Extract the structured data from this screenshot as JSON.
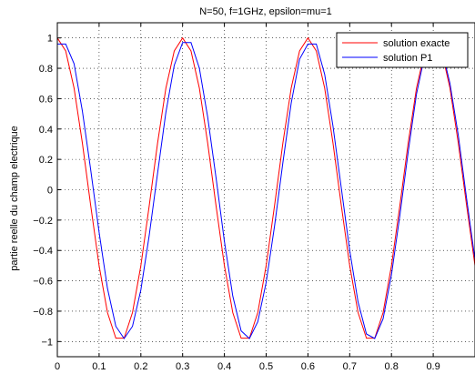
{
  "chart_data": {
    "type": "line",
    "title": "N=50, f=1GHz, epsilon=mu=1",
    "xlabel": "",
    "ylabel": "partie reelle du champ electrique",
    "xlim": [
      0,
      1
    ],
    "ylim": [
      -1.1,
      1.1
    ],
    "grid": true,
    "legend_position": "top-right",
    "x_ticks": [
      0,
      0.1,
      0.2,
      0.3,
      0.4,
      0.5,
      0.6,
      0.7,
      0.8,
      0.9
    ],
    "x_tick_labels": [
      "0",
      "0.1",
      "0.2",
      "0.3",
      "0.4",
      "0.5",
      "0.6",
      "0.7",
      "0.8",
      "0.9"
    ],
    "y_ticks": [
      1,
      0.8,
      0.6,
      0.4,
      0.2,
      0,
      -0.2,
      -0.4,
      -0.6,
      -0.8,
      -1
    ],
    "y_tick_labels": [
      "1",
      "0.8",
      "0.6",
      "0.4",
      "0.2",
      "0",
      "−0.2",
      "−0.4",
      "−0.6",
      "−0.8",
      "−1"
    ],
    "x": [
      0,
      0.02,
      0.04,
      0.06,
      0.08,
      0.1,
      0.12,
      0.14,
      0.16,
      0.18,
      0.2,
      0.22,
      0.24,
      0.26,
      0.28,
      0.3,
      0.32,
      0.34,
      0.36,
      0.38,
      0.4,
      0.42,
      0.44,
      0.46,
      0.48,
      0.5,
      0.52,
      0.54,
      0.56,
      0.58,
      0.6,
      0.62,
      0.64,
      0.66,
      0.68,
      0.7,
      0.72,
      0.74,
      0.76,
      0.78,
      0.8,
      0.82,
      0.84,
      0.86,
      0.88,
      0.9,
      0.92,
      0.94,
      0.96,
      0.98,
      1.0
    ],
    "series": [
      {
        "name": "solution exacte",
        "color": "#ff0000",
        "values": [
          1.0,
          0.914,
          0.669,
          0.309,
          -0.105,
          -0.5,
          -0.809,
          -0.978,
          -0.978,
          -0.809,
          -0.5,
          -0.105,
          0.309,
          0.669,
          0.914,
          1.0,
          0.914,
          0.669,
          0.309,
          -0.105,
          -0.5,
          -0.809,
          -0.978,
          -0.978,
          -0.809,
          -0.5,
          -0.105,
          0.309,
          0.669,
          0.914,
          1.0,
          0.914,
          0.669,
          0.309,
          -0.105,
          -0.5,
          -0.809,
          -0.978,
          -0.978,
          -0.809,
          -0.5,
          -0.105,
          0.309,
          0.669,
          0.914,
          1.0,
          0.914,
          0.669,
          0.309,
          -0.105,
          -0.5
        ]
      },
      {
        "name": "solution P1",
        "color": "#0000ff",
        "values": [
          0.96,
          0.96,
          0.83,
          0.52,
          0.13,
          -0.28,
          -0.65,
          -0.9,
          -0.98,
          -0.9,
          -0.66,
          -0.3,
          0.11,
          0.51,
          0.82,
          0.97,
          0.97,
          0.8,
          0.48,
          0.08,
          -0.34,
          -0.7,
          -0.93,
          -0.98,
          -0.87,
          -0.61,
          -0.24,
          0.18,
          0.57,
          0.86,
          0.96,
          0.96,
          0.76,
          0.42,
          0.01,
          -0.4,
          -0.74,
          -0.95,
          -0.98,
          -0.85,
          -0.56,
          -0.17,
          0.25,
          0.63,
          0.89,
          0.99,
          0.93,
          0.7,
          0.36,
          -0.06,
          -0.46
        ]
      }
    ]
  }
}
